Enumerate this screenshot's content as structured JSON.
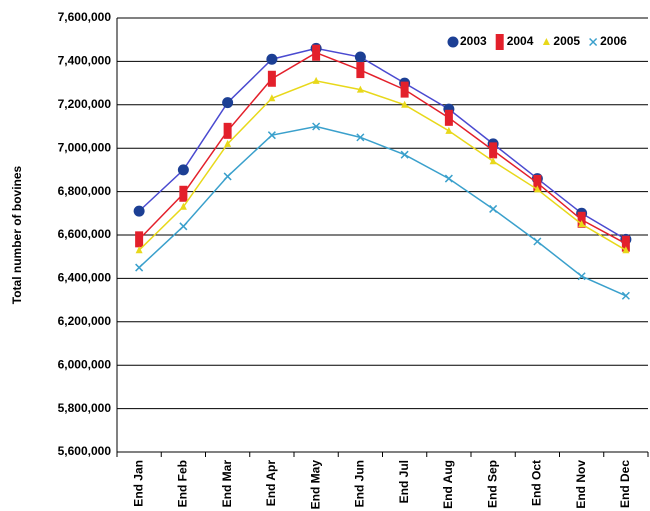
{
  "chart_data": {
    "type": "line",
    "y_label": "Total number of bovines",
    "categories": [
      "End Jan",
      "End Feb",
      "End Mar",
      "End Apr",
      "End May",
      "End Jun",
      "End Jul",
      "End Aug",
      "End Sep",
      "End Oct",
      "End Nov",
      "End Dec"
    ],
    "series": [
      {
        "name": "2003",
        "color": "#1c3f94",
        "line_color": "#4a4ad0",
        "marker": "circle",
        "values": [
          6710000,
          6900000,
          7210000,
          7410000,
          7460000,
          7420000,
          7300000,
          7180000,
          7020000,
          6860000,
          6700000,
          6580000
        ]
      },
      {
        "name": "2004",
        "color": "#e3202b",
        "line_color": "#e3202b",
        "marker": "rect",
        "values": [
          6580000,
          6790000,
          7080000,
          7320000,
          7440000,
          7360000,
          7270000,
          7140000,
          6990000,
          6840000,
          6670000,
          6560000
        ]
      },
      {
        "name": "2005",
        "color": "#e8d81a",
        "line_color": "#e8d81a",
        "marker": "triangle",
        "values": [
          6530000,
          6730000,
          7020000,
          7230000,
          7310000,
          7270000,
          7200000,
          7080000,
          6940000,
          6810000,
          6650000,
          6530000
        ]
      },
      {
        "name": "2006",
        "color": "#3aa0cc",
        "line_color": "#3aa0cc",
        "marker": "cross",
        "values": [
          6450000,
          6640000,
          6870000,
          7060000,
          7100000,
          7050000,
          6970000,
          6860000,
          6720000,
          6570000,
          6410000,
          6320000
        ]
      }
    ],
    "ylim": [
      5600000,
      7600000
    ],
    "yticks": [
      {
        "value": 5600000,
        "label": "5,600,000"
      },
      {
        "value": 5800000,
        "label": "5,800,000"
      },
      {
        "value": 6000000,
        "label": "6,000,000"
      },
      {
        "value": 6200000,
        "label": "6,200,000"
      },
      {
        "value": 6400000,
        "label": "6,400,000"
      },
      {
        "value": 6600000,
        "label": "6,600,000"
      },
      {
        "value": 6800000,
        "label": "6,800,000"
      },
      {
        "value": 7000000,
        "label": "7,000,000"
      },
      {
        "value": 7200000,
        "label": "7,200,000"
      },
      {
        "value": 7400000,
        "label": "7,400,000"
      },
      {
        "value": 7600000,
        "label": "7,600,000"
      }
    ],
    "grid": true,
    "legend": "top-right"
  }
}
